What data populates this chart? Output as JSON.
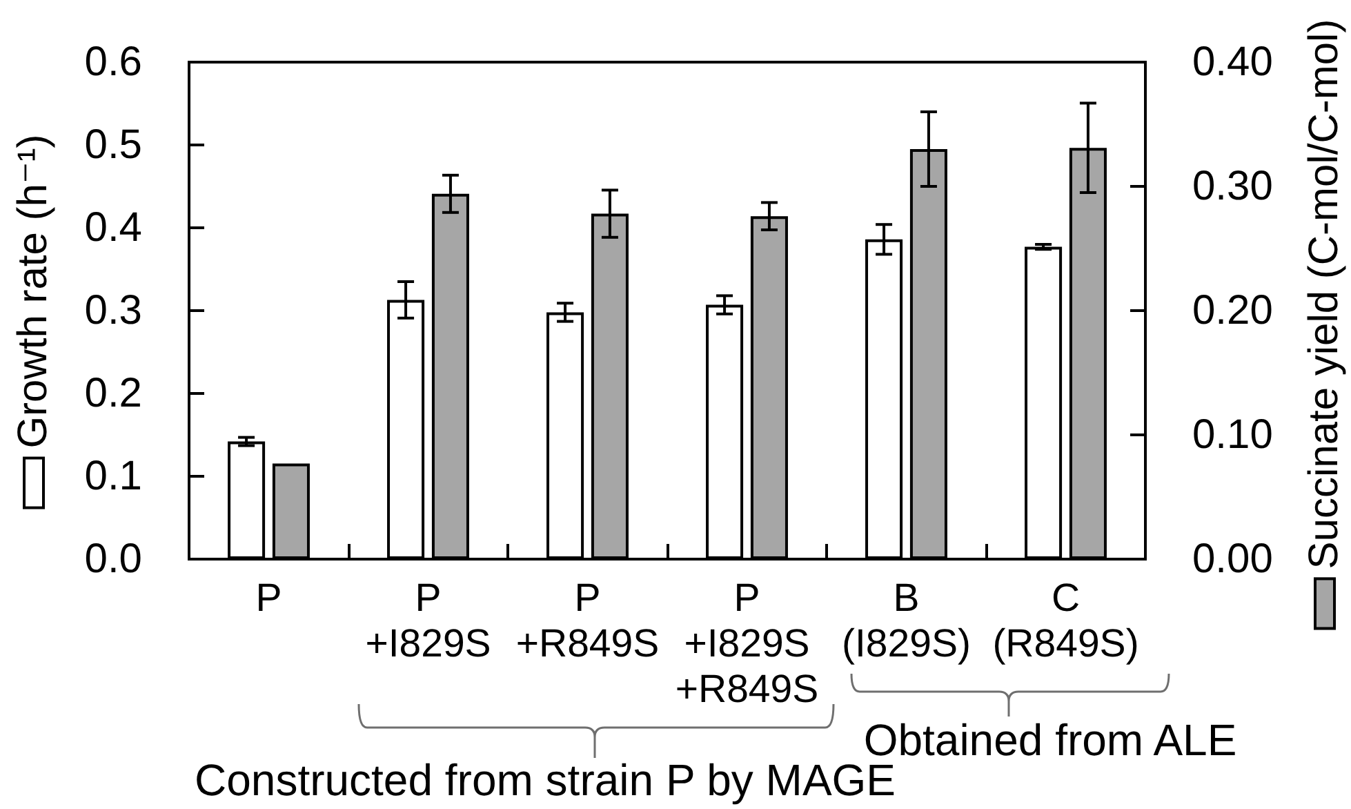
{
  "chart_data": {
    "type": "bar",
    "ylabel": "Growth rate (h⁻¹)",
    "y2label": "Succinate yield (C-mol/C-mol)",
    "categories": [
      "P",
      "P\n+I829S",
      "P\n+R849S",
      "P\n+I829S\n+R849S",
      "B\n(I829S)",
      "C\n(R849S)"
    ],
    "series": [
      {
        "color": "#ffffff",
        "values": [
          0.142,
          0.313,
          0.298,
          0.307,
          0.386,
          0.377
        ],
        "errors": [
          0.005,
          0.022,
          0.011,
          0.011,
          0.018,
          0.003
        ]
      },
      {
        "color": "#a6a6a6",
        "axis": "y2",
        "values": [
          0.077,
          0.294,
          0.278,
          0.276,
          0.33,
          0.331
        ],
        "errors": [
          null,
          0.015,
          0.019,
          0.011,
          0.03,
          0.036
        ]
      }
    ],
    "ylim": [
      0,
      0.6
    ],
    "yticks": [
      {
        "value": 0,
        "label": "0.0"
      },
      0.1,
      0.2,
      0.3,
      0.4,
      0.5,
      0.6
    ],
    "y2lim": [
      0,
      0.4
    ],
    "y2ticks": [
      {
        "value": 0,
        "label": "0.00"
      },
      {
        "value": 0.1,
        "label": "0.10"
      },
      {
        "value": 0.2,
        "label": "0.20"
      },
      {
        "value": 0.3,
        "label": "0.30"
      },
      {
        "value": 0.4,
        "label": "0.40"
      }
    ],
    "annotations": [
      "Constructed from strain P by MAGE",
      "Obtained from ALE"
    ]
  }
}
